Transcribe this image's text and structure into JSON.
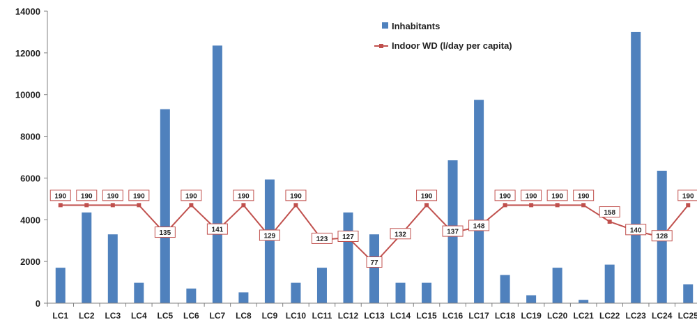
{
  "chart_data": {
    "type": "bar",
    "categories": [
      "LC1",
      "LC2",
      "LC3",
      "LC4",
      "LC5",
      "LC6",
      "LC7",
      "LC8",
      "LC9",
      "LC10",
      "LC11",
      "LC12",
      "LC13",
      "LC14",
      "LC15",
      "LC16",
      "LC17",
      "LC18",
      "LC19",
      "LC20",
      "LC21",
      "LC22",
      "LC23",
      "LC24",
      "LC25"
    ],
    "series": [
      {
        "name": "Inhabitants",
        "type": "bar",
        "color": "#4f81bd",
        "values": [
          1700,
          4350,
          3300,
          980,
          9300,
          700,
          12350,
          520,
          5930,
          980,
          1700,
          4350,
          3300,
          980,
          980,
          6850,
          9750,
          1350,
          380,
          1700,
          160,
          1850,
          13000,
          6350,
          900
        ]
      },
      {
        "name": "Indoor WD (l/day per capita)",
        "type": "line",
        "color": "#c0504d",
        "values": [
          190,
          190,
          190,
          190,
          135,
          190,
          141,
          190,
          129,
          190,
          123,
          127,
          77,
          132,
          190,
          137,
          148,
          190,
          190,
          190,
          190,
          158,
          140,
          128,
          190
        ],
        "data_labels": [
          "190",
          "190",
          "190",
          "190",
          "135",
          "190",
          "141",
          "190",
          "129",
          "190",
          "123",
          "127",
          "77",
          "132",
          "190",
          "137",
          "148",
          "190",
          "190",
          "190",
          "190",
          "158",
          "140",
          "128",
          "190"
        ]
      }
    ],
    "yticks": [
      "0",
      "2000",
      "4000",
      "6000",
      "8000",
      "10000",
      "12000",
      "14000"
    ],
    "ylim": [
      0,
      14000
    ],
    "title": "",
    "xlabel": "",
    "ylabel": "",
    "legend_position": "top-center",
    "grid": false
  }
}
